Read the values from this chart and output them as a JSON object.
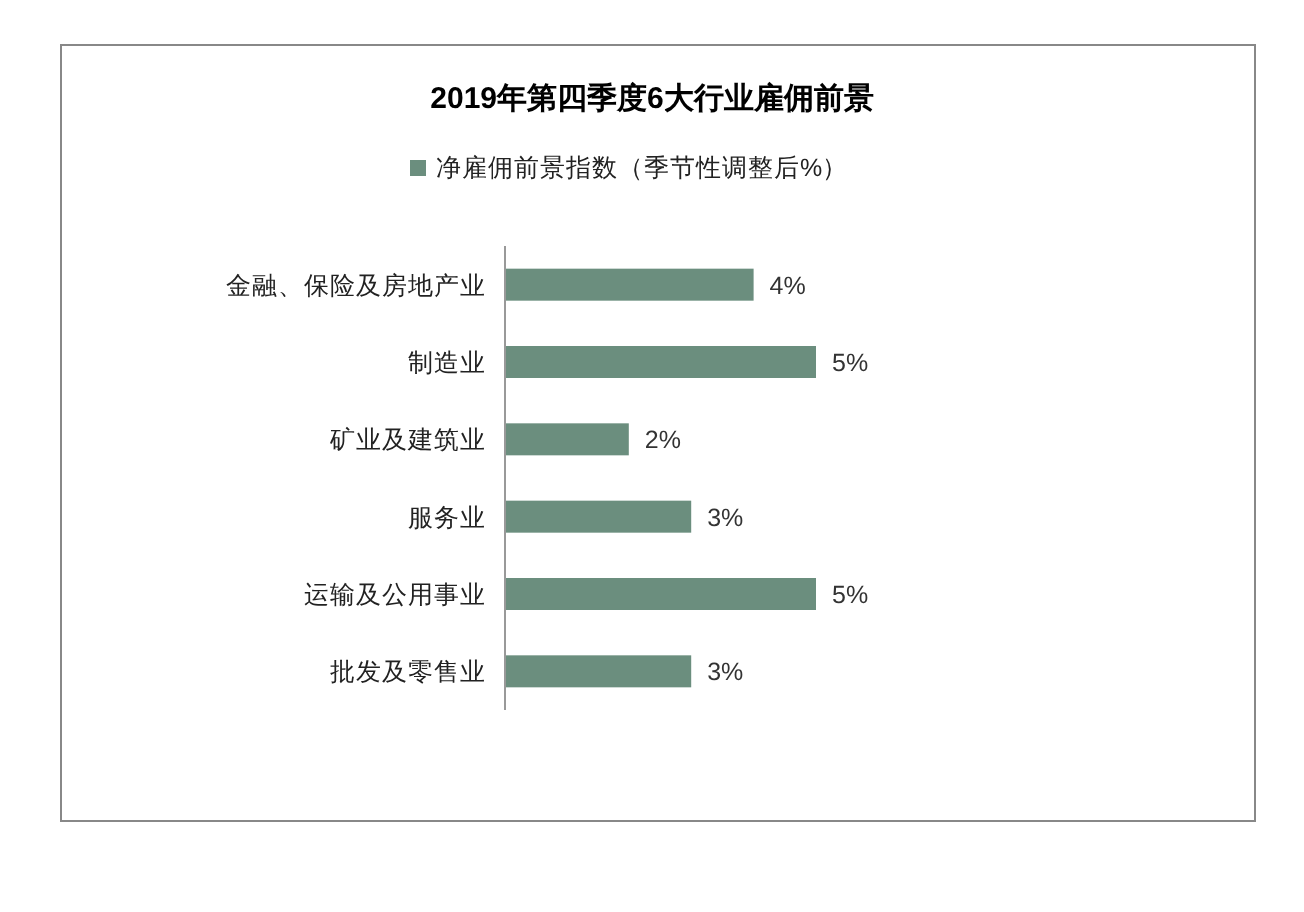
{
  "chart_data": {
    "type": "bar",
    "orientation": "horizontal",
    "title": "2019年第四季度6大行业雇佣前景",
    "categories": [
      "金融、保险及房地产业",
      "制造业",
      "矿业及建筑业",
      "服务业",
      "运输及公用事业",
      "批发及零售业"
    ],
    "series": [
      {
        "name": "净雇佣前景指数（季节性调整后%）",
        "color": "#6b8e7e",
        "values": [
          4,
          5,
          2,
          3,
          5,
          3
        ],
        "value_labels": [
          "4%",
          "5%",
          "2%",
          "3%",
          "5%",
          "3%"
        ]
      }
    ],
    "legend": "top",
    "grid": false
  }
}
